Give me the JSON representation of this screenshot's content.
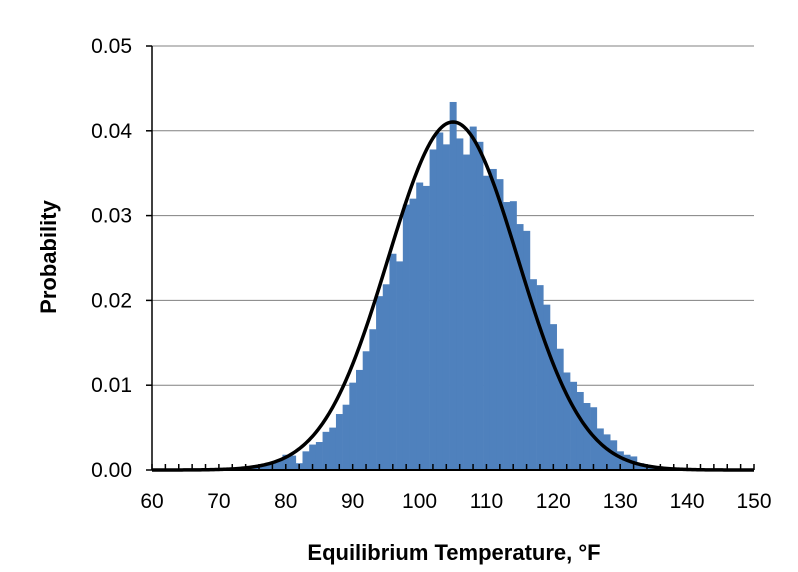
{
  "chart_data": {
    "type": "bar",
    "title": "",
    "xlabel": "Equilibrium Temperature, °F",
    "ylabel": "Probability",
    "xlim": [
      60,
      150
    ],
    "ylim": [
      0,
      0.05
    ],
    "x_ticks": [
      "60",
      "70",
      "80",
      "90",
      "100",
      "110",
      "120",
      "130",
      "140",
      "150"
    ],
    "y_ticks": [
      "0.00",
      "0.01",
      "0.02",
      "0.03",
      "0.04",
      "0.05"
    ],
    "grid": "horizontal",
    "legend": "none",
    "colors": {
      "bars": "#4f81bd",
      "curve": "#000000",
      "grid": "#808080"
    },
    "series": [
      {
        "type": "histogram",
        "bin_width": 1,
        "x": [
          72,
          73,
          74,
          75,
          76,
          77,
          78,
          79,
          80,
          81,
          82,
          83,
          84,
          85,
          86,
          87,
          88,
          89,
          90,
          91,
          92,
          93,
          94,
          95,
          96,
          97,
          98,
          99,
          100,
          101,
          102,
          103,
          104,
          105,
          106,
          107,
          108,
          109,
          110,
          111,
          112,
          113,
          114,
          115,
          116,
          117,
          118,
          119,
          120,
          121,
          122,
          123,
          124,
          125,
          126,
          127,
          128,
          129,
          130,
          131,
          132,
          133,
          134,
          135,
          136,
          137,
          138,
          139,
          140
        ],
        "values": [
          0.0001,
          0.0001,
          0.0002,
          0.0003,
          0.0004,
          0.0006,
          0.0009,
          0.0012,
          0.0018,
          0.0017,
          0.0008,
          0.0022,
          0.003,
          0.0033,
          0.0045,
          0.005,
          0.0066,
          0.0077,
          0.0103,
          0.0118,
          0.014,
          0.0166,
          0.0205,
          0.0219,
          0.0255,
          0.0246,
          0.0313,
          0.032,
          0.0339,
          0.0335,
          0.0378,
          0.0398,
          0.0384,
          0.0434,
          0.0391,
          0.0372,
          0.0405,
          0.0387,
          0.0347,
          0.0355,
          0.0343,
          0.0316,
          0.0317,
          0.029,
          0.0282,
          0.0225,
          0.0218,
          0.0195,
          0.0172,
          0.0143,
          0.0115,
          0.0104,
          0.0092,
          0.0079,
          0.0074,
          0.0049,
          0.0042,
          0.0035,
          0.0022,
          0.0018,
          0.0016,
          0.0008,
          0.0006,
          0.0004,
          0.0003,
          0.0002,
          0.0002,
          0.0001,
          0.0001
        ]
      },
      {
        "type": "line",
        "distribution": "normal",
        "mean": 105,
        "sd": 9.72
      }
    ]
  }
}
